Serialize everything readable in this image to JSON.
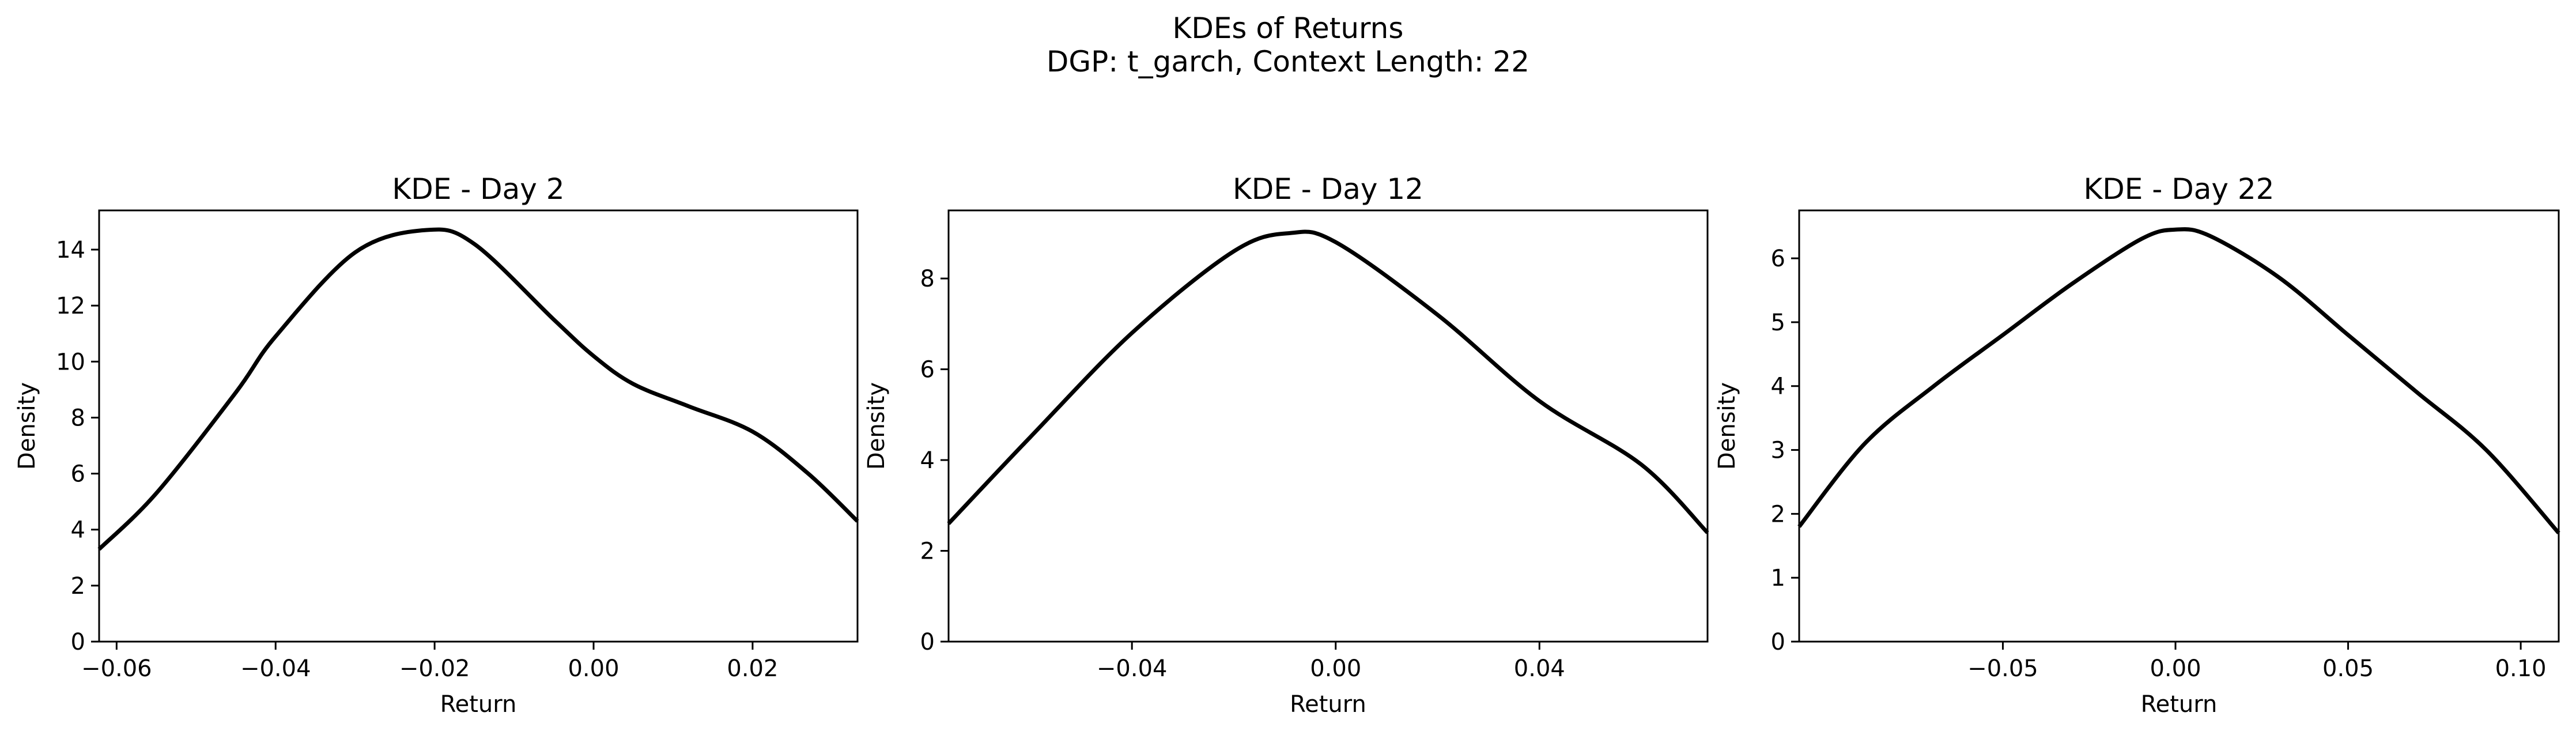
{
  "figure": {
    "title": "KDEs of Returns",
    "subtitle": "DGP: t_garch, Context Length: 22"
  },
  "chart_data": [
    {
      "type": "line",
      "title": "KDE - Day 2",
      "xlabel": "Return",
      "ylabel": "Density",
      "xlim": [
        -0.0622,
        0.0332
      ],
      "ylim": [
        0,
        15.4
      ],
      "xticks": [
        -0.06,
        -0.04,
        -0.02,
        0.0,
        0.02
      ],
      "xtick_labels": [
        "−0.06",
        "−0.04",
        "−0.02",
        "0.00",
        "0.02"
      ],
      "yticks": [
        0,
        2,
        4,
        6,
        8,
        10,
        12,
        14
      ],
      "ytick_labels": [
        "0",
        "2",
        "4",
        "6",
        "8",
        "10",
        "12",
        "14"
      ],
      "grid": false,
      "series": [
        {
          "color": "#000000",
          "x": [
            -0.0622,
            -0.055,
            -0.045,
            -0.04,
            -0.03,
            -0.021,
            -0.015,
            -0.005,
            0.0,
            0.005,
            0.012,
            0.02,
            0.027,
            0.0332
          ],
          "y": [
            3.3,
            5.3,
            8.9,
            10.9,
            13.9,
            14.7,
            14.2,
            11.5,
            10.2,
            9.2,
            8.4,
            7.5,
            6.0,
            4.3
          ]
        }
      ]
    },
    {
      "type": "line",
      "title": "KDE - Day 12",
      "xlabel": "Return",
      "ylabel": "Density",
      "xlim": [
        -0.076,
        0.073
      ],
      "ylim": [
        0,
        9.5
      ],
      "xticks": [
        -0.04,
        0.0,
        0.04
      ],
      "xtick_labels": [
        "−0.04",
        "0.00",
        "0.04"
      ],
      "yticks": [
        0,
        2,
        4,
        6,
        8
      ],
      "ytick_labels": [
        "0",
        "2",
        "4",
        "6",
        "8"
      ],
      "grid": false,
      "series": [
        {
          "color": "#000000",
          "x": [
            -0.076,
            -0.06,
            -0.04,
            -0.02,
            -0.009,
            0.0,
            0.02,
            0.04,
            0.06,
            0.073
          ],
          "y": [
            2.6,
            4.5,
            6.8,
            8.6,
            9.0,
            8.8,
            7.2,
            5.3,
            3.9,
            2.4
          ]
        }
      ]
    },
    {
      "type": "line",
      "title": "KDE - Day 22",
      "xlabel": "Return",
      "ylabel": "Density",
      "xlim": [
        -0.109,
        0.111
      ],
      "ylim": [
        0,
        6.75
      ],
      "xticks": [
        -0.05,
        0.0,
        0.05,
        0.1
      ],
      "xtick_labels": [
        "−0.05",
        "0.00",
        "0.05",
        "0.10"
      ],
      "yticks": [
        0,
        1,
        2,
        3,
        4,
        5,
        6
      ],
      "ytick_labels": [
        "0",
        "1",
        "2",
        "3",
        "4",
        "5",
        "6"
      ],
      "grid": false,
      "series": [
        {
          "color": "#000000",
          "x": [
            -0.109,
            -0.09,
            -0.07,
            -0.05,
            -0.03,
            -0.01,
            0.0,
            0.01,
            0.03,
            0.05,
            0.07,
            0.09,
            0.111
          ],
          "y": [
            1.8,
            3.1,
            4.0,
            4.8,
            5.6,
            6.3,
            6.45,
            6.35,
            5.7,
            4.8,
            3.9,
            3.0,
            1.7
          ]
        }
      ]
    }
  ]
}
